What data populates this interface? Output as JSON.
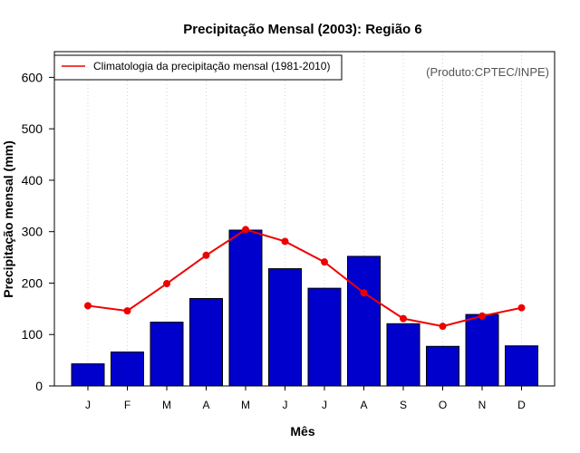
{
  "chart_data": {
    "type": "bar",
    "title": "Precipitação Mensal (2003): Região 6",
    "xlabel": "Mês",
    "ylabel": "Precipitação mensal (mm)",
    "categories": [
      "J",
      "F",
      "M",
      "A",
      "M",
      "J",
      "J",
      "A",
      "S",
      "O",
      "N",
      "D"
    ],
    "ylim": [
      0,
      650
    ],
    "yticks": [
      0,
      100,
      200,
      300,
      400,
      500,
      600
    ],
    "grid": "vertical dotted",
    "series": [
      {
        "name": "Precipitação mensal (2003)",
        "type": "bar",
        "color": "#0000cd",
        "values": [
          43,
          66,
          124,
          170,
          303,
          228,
          190,
          252,
          121,
          77,
          139,
          78
        ]
      },
      {
        "name": "Climatologia da precipitação mensal (1981-2010)",
        "type": "line",
        "color": "#ee0000",
        "values": [
          156,
          146,
          199,
          254,
          304,
          281,
          241,
          181,
          131,
          116,
          136,
          152
        ]
      }
    ],
    "legend": {
      "position": "top-left",
      "entries": [
        "Climatologia da precipitação mensal (1981-2010)"
      ]
    },
    "annotation": "(Produto:CPTEC/INPE)"
  }
}
